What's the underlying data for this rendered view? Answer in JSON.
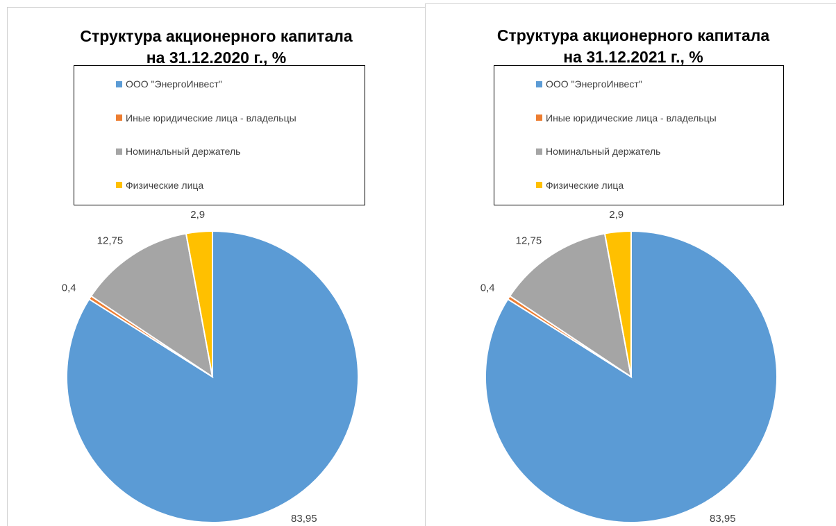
{
  "chart_data": [
    {
      "type": "pie",
      "title": "Структура акционерного капитала на 31.12.2020 г., %",
      "categories": [
        "ООО \"ЭнергоИнвест\"",
        "Иные юридические лица - владельцы",
        "Номинальный держатель",
        "Физические лица"
      ],
      "values": [
        83.95,
        0.4,
        12.75,
        2.9
      ],
      "value_labels": [
        "83,95",
        "0,4",
        "12,75",
        "2,9"
      ],
      "colors": [
        "#5b9bd5",
        "#ed7d31",
        "#a5a5a5",
        "#ffc000"
      ]
    },
    {
      "type": "pie",
      "title": "Структура акционерного капитала на 31.12.2021 г., %",
      "categories": [
        "ООО \"ЭнергоИнвест\"",
        "Иные юридические лица - владельцы",
        "Номинальный держатель",
        "Физические лица"
      ],
      "values": [
        83.95,
        0.4,
        12.75,
        2.9
      ],
      "value_labels": [
        "83,95",
        "0,4",
        "12,75",
        "2,9"
      ],
      "colors": [
        "#5b9bd5",
        "#ed7d31",
        "#a5a5a5",
        "#ffc000"
      ]
    }
  ]
}
